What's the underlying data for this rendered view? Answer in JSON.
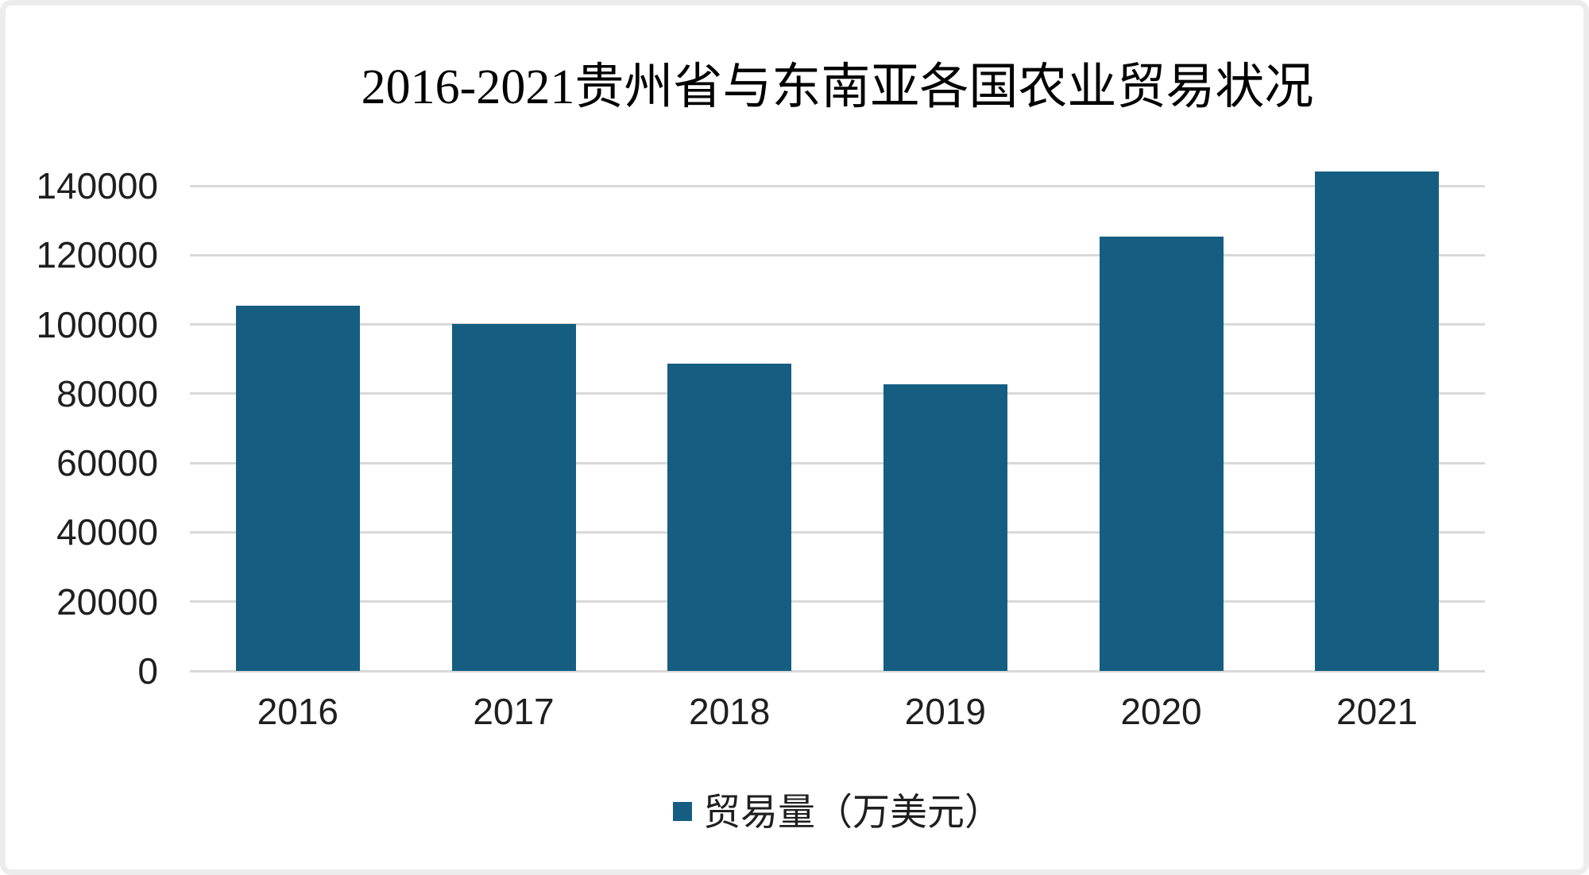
{
  "chart": {
    "title": "2016-2021贵州省与东南亚各国农业贸易状况",
    "legend": {
      "label": "贸易量（万美元）",
      "marker": "square"
    }
  },
  "chart_data": {
    "type": "bar",
    "title": "2016-2021贵州省与东南亚各国农业贸易状况",
    "categories": [
      "2016",
      "2017",
      "2018",
      "2019",
      "2020",
      "2021"
    ],
    "series": [
      {
        "name": "贸易量（万美元）",
        "values": [
          105500,
          100200,
          88700,
          82700,
          125400,
          144200
        ]
      }
    ],
    "xlabel": "",
    "ylabel": "",
    "ylim": [
      0,
      140000
    ],
    "yticks": [
      0,
      20000,
      40000,
      60000,
      80000,
      100000,
      120000,
      140000
    ],
    "grid": true,
    "legend_position": "bottom",
    "colors": {
      "bar": "#155e82",
      "gridline": "#d9d9d9",
      "axis_line": "#d9d9d9",
      "text": "#1f1f1f",
      "title_text": "#000000",
      "frame_border": "#ececec",
      "background": "#ffffff"
    }
  }
}
